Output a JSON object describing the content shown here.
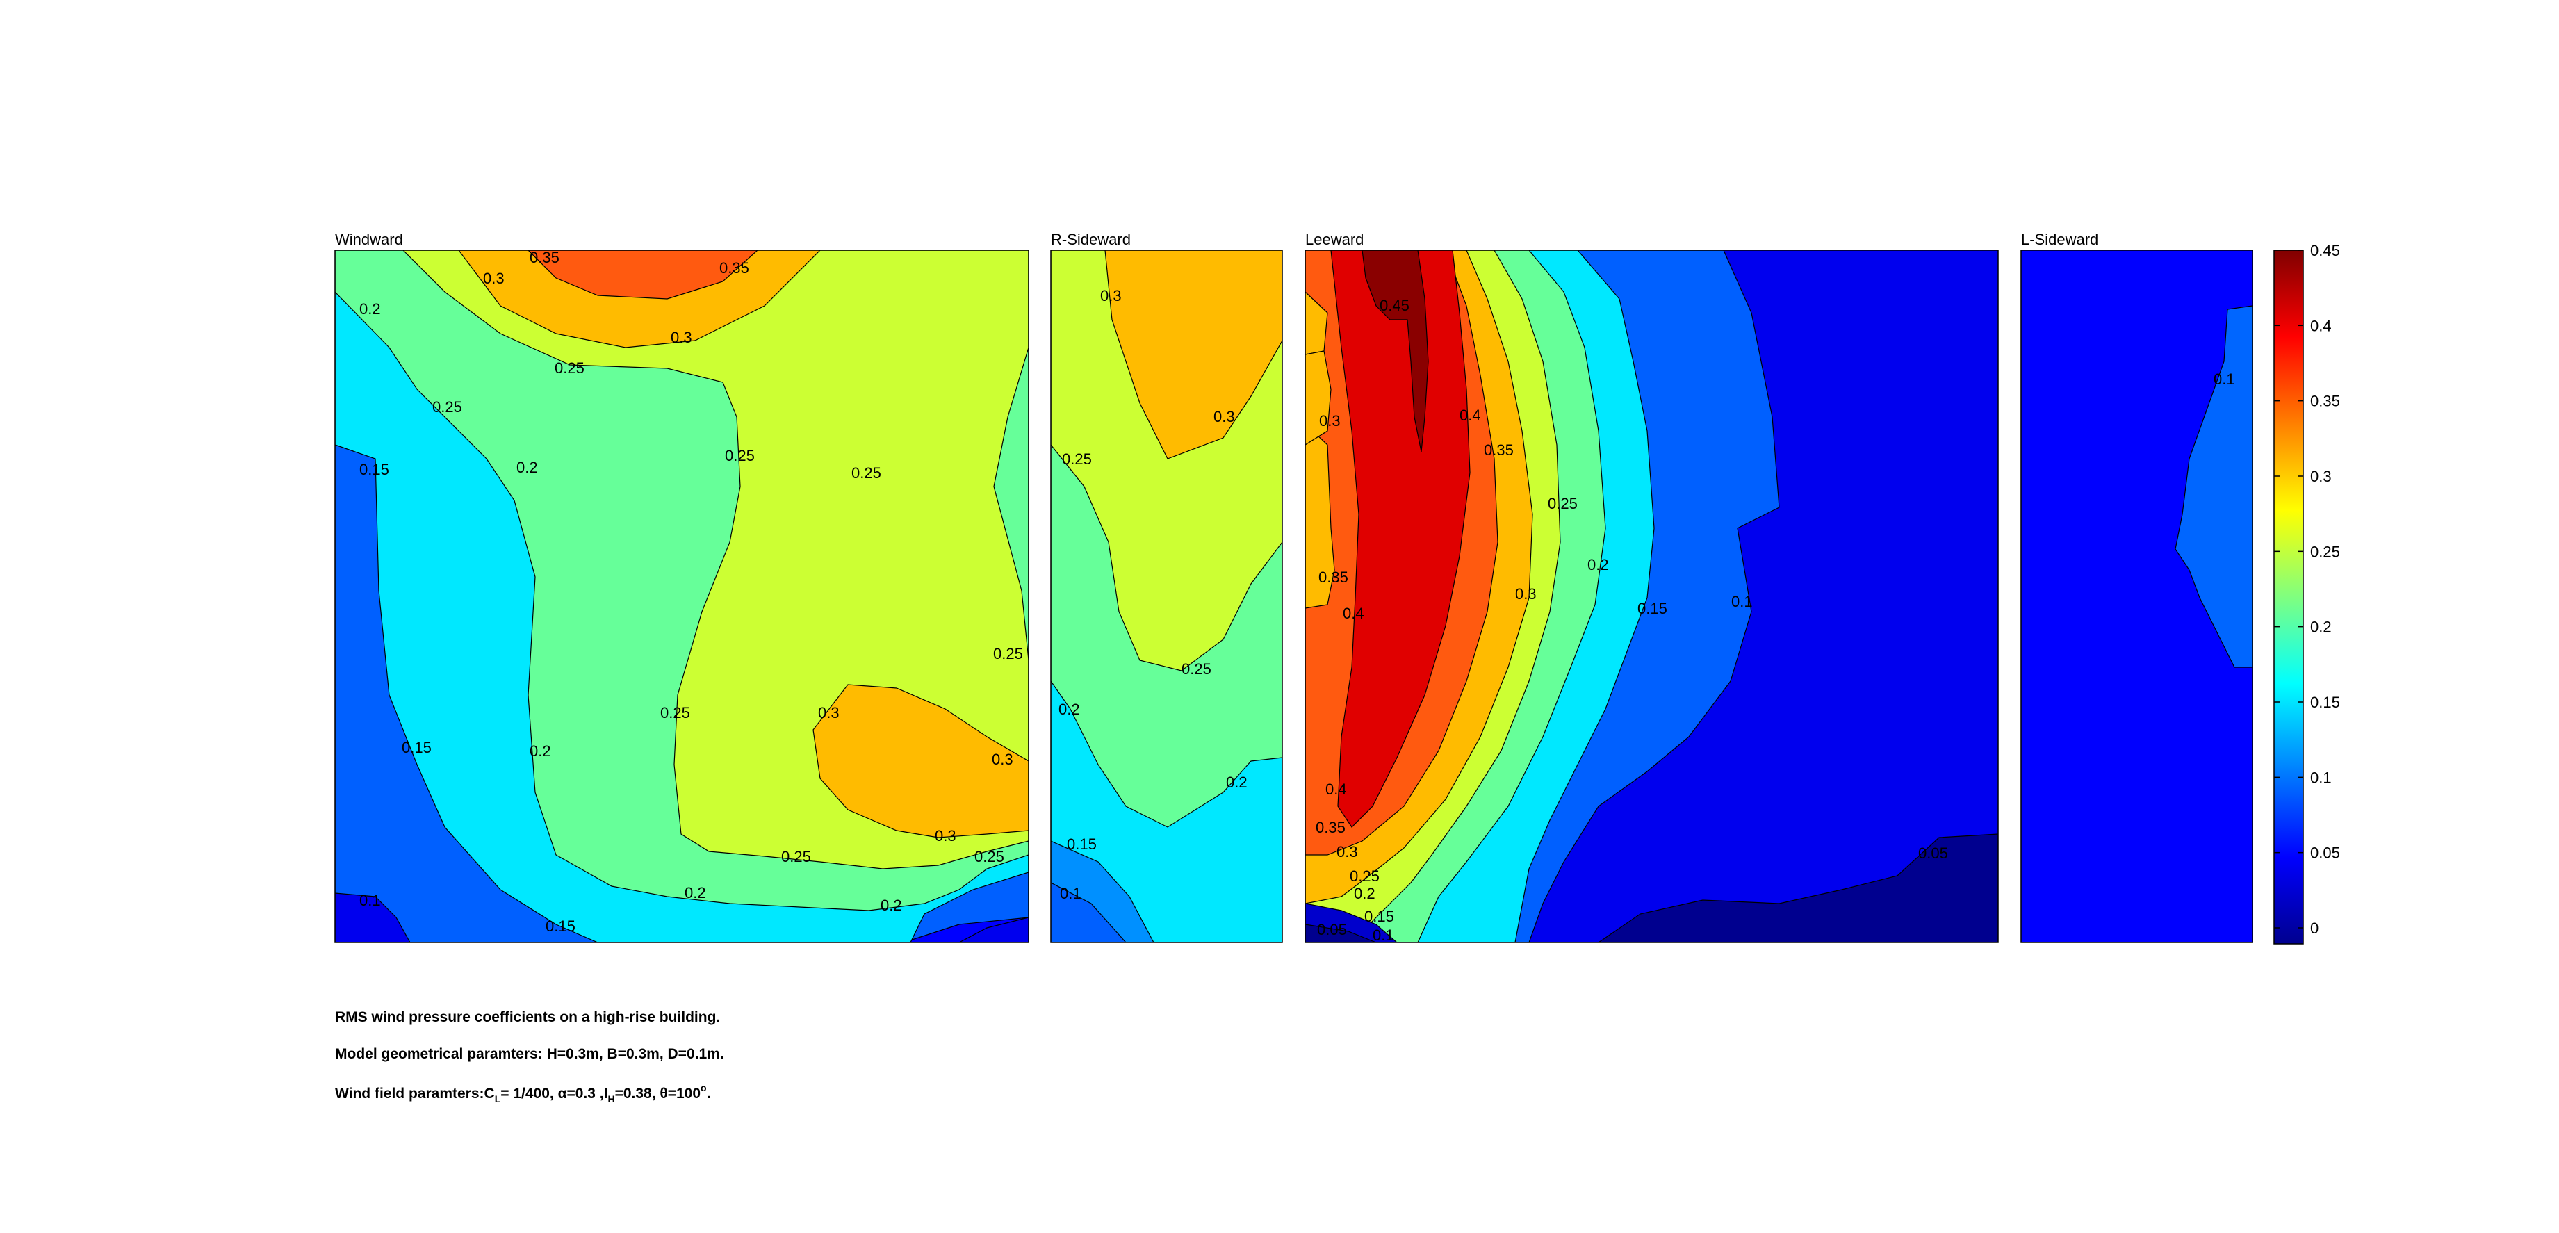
{
  "chart_data": {
    "type": "contour",
    "colormap": "jet",
    "panels": [
      {
        "title": "Windward",
        "levels": [
          0.05,
          0.1,
          0.15,
          0.2,
          0.25,
          0.3,
          0.35
        ],
        "peak_value": 0.37,
        "contour_labels": [
          "0.35",
          "0.35",
          "0.3",
          "0.3",
          "0.25",
          "0.2",
          "0.25",
          "0.15",
          "0.2",
          "0.25",
          "0.25",
          "0.25",
          "0.25",
          "0.3",
          "0.3",
          "0.15",
          "0.2",
          "0.3",
          "0.25",
          "0.25",
          "0.2",
          "0.2",
          "0.1",
          "0.15"
        ]
      },
      {
        "title": "R-Sideward",
        "levels": [
          0.05,
          0.1,
          0.15,
          0.2,
          0.25,
          0.3
        ],
        "peak_value": 0.32,
        "contour_labels": [
          "0.3",
          "0.3",
          "0.25",
          "0.25",
          "0.2",
          "0.2",
          "0.15",
          "0.1"
        ]
      },
      {
        "title": "Leeward",
        "levels": [
          0,
          0.05,
          0.1,
          0.15,
          0.2,
          0.25,
          0.3,
          0.35,
          0.4,
          0.45
        ],
        "peak_value": 0.46,
        "contour_labels": [
          "0.45",
          "0.3",
          "0.4",
          "0.35",
          "0.35",
          "0.4",
          "0.25",
          "0.3",
          "0.2",
          "0.15",
          "0.1",
          "0.4",
          "0.35",
          "0.3",
          "0.25",
          "0.2",
          "0.15",
          "0.1",
          "0.05",
          "0.05"
        ]
      },
      {
        "title": "L-Sideward",
        "levels": [
          0.05,
          0.1
        ],
        "peak_value": 0.11,
        "contour_labels": [
          "0.1"
        ]
      }
    ],
    "colorbar": {
      "min": 0,
      "max": 0.45,
      "ticks": [
        "0.45",
        "0.4",
        "0.35",
        "0.3",
        "0.25",
        "0.2",
        "0.15",
        "0.1",
        "0.05",
        "0"
      ]
    }
  },
  "caption": {
    "line1": "RMS wind pressure coefficients on a high-rise building.",
    "line2": "Model geometrical paramters: H=0.3m, B=0.3m, D=0.1m.",
    "line3_a": "Wind field paramters:C",
    "line3_sub1": "L",
    "line3_b": "= 1/400, α=0.3 ,I",
    "line3_sub2": "H",
    "line3_c": "=0.38, θ=100",
    "line3_sup": "o",
    "line3_d": "."
  }
}
